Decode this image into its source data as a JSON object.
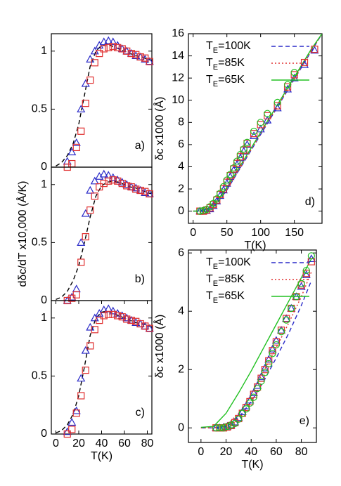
{
  "chart_data": [
    {
      "type": "line",
      "label": "a)",
      "xlim": [
        -4,
        84
      ],
      "ylim": [
        0,
        1.15
      ],
      "yticks": [
        0,
        0.5,
        1
      ],
      "series": [
        {
          "color": "#2a2ac8",
          "marker": "triangle",
          "x": [
            10,
            14,
            18,
            22,
            26,
            30,
            34,
            38,
            42,
            46,
            50,
            54,
            58,
            62,
            66,
            70,
            74,
            78,
            82
          ],
          "values": [
            0.05,
            0.13,
            0.21,
            0.5,
            0.72,
            0.93,
            1.0,
            1.05,
            1.08,
            1.09,
            1.08,
            1.05,
            1.02,
            1.0,
            0.98,
            0.96,
            0.95,
            0.93,
            0.91
          ]
        },
        {
          "color": "#e03030",
          "marker": "square",
          "x": [
            10,
            14,
            18,
            22,
            26,
            30,
            34,
            38,
            42,
            46,
            50,
            54,
            58,
            62,
            66,
            70,
            74,
            78,
            82
          ],
          "values": [
            0.0,
            0.03,
            0.17,
            0.31,
            0.55,
            0.75,
            0.9,
            0.98,
            1.02,
            1.03,
            1.04,
            1.03,
            1.02,
            1.0,
            0.98,
            0.97,
            0.95,
            0.94,
            0.91
          ]
        },
        {
          "color": "#000000",
          "dash": "dashed",
          "x": [
            0,
            5,
            10,
            15,
            20,
            25,
            30,
            35,
            40,
            45,
            50,
            55,
            60,
            65,
            70,
            75,
            80,
            84
          ],
          "values": [
            0.01,
            0.04,
            0.1,
            0.2,
            0.37,
            0.62,
            0.87,
            1.0,
            1.05,
            1.06,
            1.04,
            1.02,
            1.0,
            0.98,
            0.96,
            0.95,
            0.93,
            0.92
          ]
        }
      ]
    },
    {
      "type": "line",
      "label": "b)",
      "ylabel": "dδc/dT x10,000 (Å/K)",
      "xlim": [
        -4,
        84
      ],
      "ylim": [
        0,
        1.15
      ],
      "yticks": [
        0,
        0.5,
        1
      ],
      "series": [
        {
          "color": "#2a2ac8",
          "marker": "triangle",
          "x": [
            10,
            14,
            18,
            22,
            26,
            30,
            34,
            38,
            42,
            46,
            50,
            54,
            58,
            62,
            66,
            70,
            74,
            78,
            82
          ],
          "values": [
            0.0,
            0.03,
            0.1,
            0.5,
            0.75,
            0.95,
            1.03,
            1.07,
            1.09,
            1.08,
            1.06,
            1.04,
            1.02,
            1.0,
            0.98,
            0.97,
            0.95,
            0.93,
            0.92
          ]
        },
        {
          "color": "#e03030",
          "marker": "square",
          "x": [
            10,
            14,
            18,
            22,
            26,
            30,
            34,
            38,
            42,
            46,
            50,
            54,
            58,
            62,
            66,
            70,
            74,
            78,
            82
          ],
          "values": [
            0.0,
            0.02,
            0.05,
            0.33,
            0.55,
            0.78,
            0.9,
            0.98,
            1.01,
            1.03,
            1.04,
            1.03,
            1.01,
            0.99,
            0.98,
            0.96,
            0.95,
            0.94,
            0.92
          ]
        },
        {
          "color": "#000000",
          "dash": "dashed",
          "x": [
            0,
            5,
            10,
            15,
            20,
            25,
            30,
            35,
            40,
            45,
            50,
            55,
            60,
            65,
            70,
            75,
            80,
            84
          ],
          "values": [
            0.01,
            0.03,
            0.08,
            0.17,
            0.3,
            0.5,
            0.72,
            0.9,
            0.99,
            1.02,
            1.03,
            1.02,
            1.0,
            0.98,
            0.97,
            0.95,
            0.93,
            0.92
          ]
        }
      ]
    },
    {
      "type": "line",
      "label": "c)",
      "xlabel": "T(K)",
      "xlim": [
        -4,
        84
      ],
      "ylim": [
        0,
        1.15
      ],
      "xticks": [
        0,
        20,
        40,
        60,
        80
      ],
      "yticks": [
        0,
        0.5,
        1
      ],
      "series": [
        {
          "color": "#2a2ac8",
          "marker": "triangle",
          "x": [
            10,
            14,
            18,
            22,
            26,
            30,
            34,
            38,
            42,
            46,
            50,
            54,
            58,
            62,
            66,
            70,
            74,
            78,
            82
          ],
          "values": [
            0.02,
            0.1,
            0.2,
            0.48,
            0.72,
            0.92,
            1.0,
            1.04,
            1.07,
            1.08,
            1.06,
            1.04,
            1.02,
            1.0,
            0.98,
            0.96,
            0.95,
            0.93,
            0.91
          ]
        },
        {
          "color": "#e03030",
          "marker": "square",
          "x": [
            10,
            14,
            18,
            22,
            26,
            30,
            34,
            38,
            42,
            46,
            50,
            54,
            58,
            62,
            66,
            70,
            74,
            78,
            82
          ],
          "values": [
            0.0,
            0.04,
            0.18,
            0.33,
            0.55,
            0.76,
            0.9,
            0.98,
            1.02,
            1.03,
            1.03,
            1.02,
            1.01,
            0.99,
            0.98,
            0.97,
            0.95,
            0.93,
            0.91
          ]
        },
        {
          "color": "#000000",
          "dash": "dashed",
          "x": [
            0,
            5,
            10,
            15,
            20,
            25,
            30,
            35,
            40,
            45,
            50,
            55,
            60,
            65,
            70,
            75,
            80,
            84
          ],
          "values": [
            0.01,
            0.03,
            0.08,
            0.17,
            0.33,
            0.58,
            0.85,
            1.0,
            1.05,
            1.06,
            1.04,
            1.02,
            1.0,
            0.98,
            0.96,
            0.95,
            0.94,
            0.92
          ]
        }
      ]
    },
    {
      "type": "line",
      "label": "d)",
      "xlabel": "T(K)",
      "ylabel": "δc x1000 (Å)",
      "xlim": [
        -7,
        191
      ],
      "ylim": [
        -1.1,
        16
      ],
      "xticks": [
        0,
        50,
        100,
        150
      ],
      "yticks": [
        0,
        2,
        4,
        6,
        8,
        10,
        12,
        14,
        16
      ],
      "legend": "top",
      "series": [
        {
          "color": "#2a2ac8",
          "marker": "triangle",
          "x": [
            10,
            15,
            20,
            25,
            30,
            35,
            40,
            45,
            50,
            55,
            60,
            65,
            70,
            75,
            80,
            90,
            100,
            110,
            125,
            140,
            150,
            165,
            180
          ],
          "values": [
            0,
            0,
            0.05,
            0.2,
            0.5,
            0.9,
            1.4,
            1.9,
            2.5,
            3.1,
            3.7,
            4.2,
            4.8,
            5.4,
            6.0,
            6.8,
            7.4,
            8.2,
            9.3,
            11,
            12,
            13.2,
            14.5
          ]
        },
        {
          "color": "#e03030",
          "marker": "square",
          "x": [
            10,
            15,
            20,
            25,
            30,
            35,
            40,
            45,
            50,
            55,
            60,
            65,
            70,
            75,
            80,
            90,
            100,
            110,
            125,
            140,
            150,
            165,
            180
          ],
          "values": [
            0,
            0,
            0.1,
            0.3,
            0.6,
            1.0,
            1.5,
            2.0,
            2.6,
            3.2,
            3.8,
            4.3,
            4.9,
            5.5,
            6.1,
            7.0,
            7.8,
            8.6,
            9.5,
            11.2,
            12.3,
            13.4,
            14.6
          ]
        },
        {
          "color": "#20c020",
          "marker": "circle",
          "x": [
            10,
            15,
            20,
            25,
            30,
            35,
            40,
            45,
            50,
            55,
            60,
            65,
            70,
            75,
            80,
            90,
            100,
            110,
            125,
            140,
            150
          ],
          "values": [
            0,
            0.05,
            0.15,
            0.4,
            0.7,
            1.1,
            1.6,
            2.2,
            2.8,
            3.3,
            3.9,
            4.5,
            5.1,
            5.6,
            6.2,
            7.2,
            8.0,
            8.8,
            9.8,
            11.4,
            12.5
          ]
        },
        {
          "name": "TE=100K",
          "color": "#2a2ac8",
          "dash": "dashed",
          "x": [
            0,
            10,
            20,
            30,
            40,
            50,
            75,
            100,
            125,
            150,
            175,
            191
          ],
          "values": [
            0,
            0,
            0.05,
            0.4,
            1.1,
            1.9,
            4.4,
            6.9,
            9.4,
            11.9,
            14.4,
            16.0
          ]
        },
        {
          "name": "TE=85K",
          "color": "#e03030",
          "dash": "dotted",
          "x": [
            0,
            10,
            20,
            30,
            40,
            50,
            75,
            100,
            125,
            150,
            175,
            191
          ],
          "values": [
            0,
            0,
            0.08,
            0.45,
            1.15,
            1.95,
            4.45,
            6.95,
            9.45,
            11.95,
            14.45,
            16.0
          ]
        },
        {
          "name": "TE=65K",
          "color": "#20c020",
          "x": [
            0,
            10,
            20,
            30,
            40,
            50,
            75,
            100,
            125,
            150,
            175,
            191
          ],
          "values": [
            0,
            0.02,
            0.15,
            0.6,
            1.3,
            2.1,
            4.6,
            7.1,
            9.6,
            12.1,
            14.6,
            16.0
          ]
        }
      ]
    },
    {
      "type": "line",
      "label": "e)",
      "xlabel": "T(K)",
      "ylabel": "δc x1000 (Å)",
      "xlim": [
        -10,
        92
      ],
      "ylim": [
        -0.5,
        6.1
      ],
      "xticks": [
        0,
        20,
        40,
        60,
        80
      ],
      "yticks": [
        0,
        2,
        4,
        6
      ],
      "legend": "top",
      "series": [
        {
          "color": "#2a2ac8",
          "marker": "triangle",
          "x": [
            12,
            15,
            18,
            21,
            24,
            27,
            30,
            33,
            36,
            39,
            42,
            45,
            48,
            51,
            54,
            57,
            60,
            64,
            68,
            72,
            76,
            80,
            84,
            88
          ],
          "values": [
            0,
            0,
            0.02,
            0.05,
            0.1,
            0.2,
            0.35,
            0.55,
            0.75,
            0.95,
            1.2,
            1.45,
            1.75,
            2.05,
            2.35,
            2.7,
            3.0,
            3.35,
            3.75,
            4.1,
            4.5,
            4.85,
            5.25,
            5.8
          ]
        },
        {
          "color": "#e03030",
          "marker": "square",
          "x": [
            12,
            15,
            18,
            21,
            24,
            27,
            30,
            33,
            36,
            39,
            42,
            45,
            48,
            51,
            54,
            57,
            60,
            64,
            68,
            72,
            76,
            80,
            84,
            88
          ],
          "values": [
            0,
            0,
            0,
            0.03,
            0.08,
            0.18,
            0.32,
            0.5,
            0.7,
            0.9,
            1.15,
            1.4,
            1.7,
            2.0,
            2.3,
            2.65,
            2.95,
            3.35,
            3.75,
            4.1,
            4.5,
            4.9,
            5.3,
            5.7
          ]
        },
        {
          "color": "#20c020",
          "marker": "circle",
          "x": [
            12,
            15,
            18,
            21,
            24,
            27,
            30,
            33,
            36,
            39,
            42,
            45,
            48,
            51,
            54,
            57,
            60,
            64,
            68,
            72,
            76,
            80,
            84,
            88
          ],
          "values": [
            0,
            0,
            0,
            0.05,
            0.1,
            0.15,
            0.3,
            0.5,
            0.65,
            0.85,
            1.05,
            1.35,
            1.6,
            1.9,
            2.2,
            2.55,
            2.85,
            3.3,
            3.7,
            4.1,
            4.5,
            4.95,
            5.4,
            5.9
          ]
        },
        {
          "name": "TE=100K",
          "color": "#2a2ac8",
          "dash": "dashed",
          "x": [
            0,
            10,
            20,
            30,
            40,
            50,
            60,
            70,
            80,
            88
          ],
          "values": [
            0,
            0,
            0.05,
            0.35,
            0.9,
            1.6,
            2.4,
            3.25,
            4.2,
            5.05
          ]
        },
        {
          "name": "TE=85K",
          "color": "#e03030",
          "dash": "dotted",
          "x": [
            0,
            10,
            20,
            30,
            40,
            50,
            60,
            70,
            80,
            88
          ],
          "values": [
            0,
            0,
            0.08,
            0.5,
            1.15,
            1.95,
            2.75,
            3.6,
            4.5,
            5.35
          ]
        },
        {
          "name": "TE=65K",
          "color": "#20c020",
          "x": [
            0,
            10,
            20,
            30,
            40,
            50,
            60,
            70,
            80,
            88
          ],
          "values": [
            0.02,
            0.05,
            0.5,
            1.2,
            1.95,
            2.75,
            3.55,
            4.35,
            5.15,
            5.8
          ]
        }
      ]
    }
  ]
}
